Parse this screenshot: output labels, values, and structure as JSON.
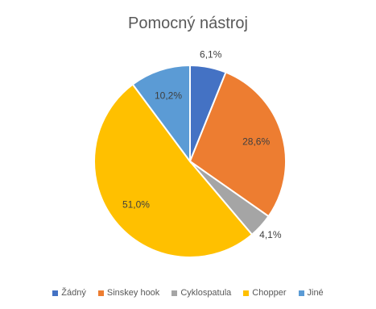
{
  "chart_data": {
    "type": "pie",
    "title": "Pomocný nástroj",
    "legend_position": "bottom",
    "categories": [
      "Žádný",
      "Sinskey hook",
      "Cyklospatula",
      "Chopper",
      "Jiné"
    ],
    "values": [
      6.1,
      28.6,
      4.1,
      51.0,
      10.2
    ],
    "labels": [
      "6,1%",
      "28,6%",
      "4,1%",
      "51,0%",
      "10,2%"
    ],
    "colors": [
      "#4472C4",
      "#ED7D31",
      "#A5A5A5",
      "#FFC000",
      "#5B9BD5"
    ]
  },
  "legend": {
    "labels": [
      "Žádný",
      "Sinskey hook",
      "Cyklospatula",
      "Chopper",
      "Jiné"
    ]
  }
}
